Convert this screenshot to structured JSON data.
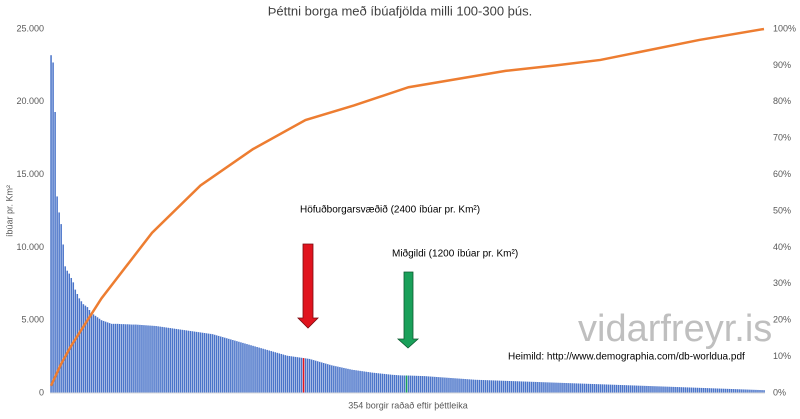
{
  "chart_data": {
    "type": "bar",
    "title": "Þéttni borga með íbúafjölda milli 100-300 þús.",
    "y_label": "íbúar pr. Km²",
    "x_label": "354 borgir raðað eftir þéttleika",
    "annotations": [
      "Höfuðborgarsvæðið (2400 íbúar pr. Km²)",
      "Miðgildi (1200 íbúar pr. Km²)"
    ],
    "watermark": "vidarfreyr.is",
    "source": "Heimild: http://www.demographia.com/db-worldua.pdf",
    "ylim": [
      0,
      25000
    ],
    "yticks": [
      0,
      {
        "value": 5000,
        "label": "5.000"
      },
      {
        "value": 10000,
        "label": "10.000"
      },
      {
        "value": 15000,
        "label": "15.000"
      },
      {
        "value": 20000,
        "label": "20.000"
      },
      {
        "value": 25000,
        "label": "25.000"
      }
    ],
    "y2lim": [
      0,
      100
    ],
    "y2ticks": [
      {
        "value": 0,
        "label": "0%"
      },
      {
        "value": 10,
        "label": "10%"
      },
      {
        "value": 20,
        "label": "20%"
      },
      {
        "value": 30,
        "label": "30%"
      },
      {
        "value": 40,
        "label": "40%"
      },
      {
        "value": 50,
        "label": "50%"
      },
      {
        "value": 60,
        "label": "60%"
      },
      {
        "value": 70,
        "label": "70%"
      },
      {
        "value": 80,
        "label": "80%"
      },
      {
        "value": 90,
        "label": "90%"
      },
      {
        "value": 100,
        "label": "100%"
      }
    ],
    "highlights": [
      {
        "index": 125,
        "color": "#e0141e"
      },
      {
        "index": 176,
        "color": "#1aa05a"
      }
    ],
    "series": [
      {
        "type": "bar",
        "color": "#4a74c9",
        "values": [
          23200,
          22700,
          19300,
          13500,
          12400,
          11600,
          10200,
          8700,
          8400,
          8200,
          7900,
          7600,
          7100,
          6800,
          6500,
          6300,
          6100,
          6000,
          5900,
          5700,
          5500,
          5400,
          5300,
          5200,
          5100,
          5000,
          4950,
          4900,
          4850,
          4800,
          4750,
          4750,
          4750,
          4750,
          4740,
          4730,
          4730,
          4720,
          4720,
          4710,
          4700,
          4700,
          4700,
          4690,
          4680,
          4670,
          4660,
          4650,
          4640,
          4630,
          4620,
          4610,
          4600,
          4580,
          4560,
          4540,
          4520,
          4500,
          4480,
          4460,
          4440,
          4420,
          4400,
          4380,
          4360,
          4340,
          4320,
          4300,
          4280,
          4260,
          4240,
          4220,
          4200,
          4180,
          4160,
          4140,
          4120,
          4100,
          4080,
          4060,
          4040,
          4000,
          3960,
          3920,
          3880,
          3840,
          3800,
          3760,
          3720,
          3680,
          3640,
          3600,
          3560,
          3520,
          3480,
          3440,
          3400,
          3360,
          3320,
          3280,
          3240,
          3200,
          3160,
          3120,
          3080,
          3040,
          3000,
          2960,
          2920,
          2880,
          2840,
          2800,
          2760,
          2720,
          2680,
          2640,
          2600,
          2560,
          2540,
          2520,
          2500,
          2480,
          2460,
          2440,
          2420,
          2400,
          2380,
          2360,
          2340,
          2300,
          2260,
          2220,
          2180,
          2140,
          2100,
          2060,
          2020,
          1980,
          1940,
          1900,
          1870,
          1840,
          1810,
          1780,
          1750,
          1720,
          1690,
          1660,
          1630,
          1600,
          1580,
          1560,
          1540,
          1520,
          1500,
          1480,
          1460,
          1440,
          1420,
          1400,
          1385,
          1370,
          1355,
          1340,
          1325,
          1310,
          1295,
          1280,
          1265,
          1250,
          1240,
          1230,
          1220,
          1210,
          1205,
          1200,
          1200,
          1200,
          1195,
          1190,
          1185,
          1180,
          1175,
          1170,
          1165,
          1160,
          1150,
          1140,
          1130,
          1120,
          1110,
          1100,
          1090,
          1080,
          1070,
          1060,
          1050,
          1040,
          1030,
          1020,
          1010,
          1000,
          990,
          980,
          970,
          960,
          950,
          940,
          930,
          920,
          910,
          905,
          900,
          895,
          890,
          885,
          880,
          875,
          870,
          865,
          860,
          855,
          850,
          845,
          840,
          835,
          830,
          825,
          820,
          815,
          810,
          805,
          800,
          795,
          790,
          785,
          780,
          775,
          770,
          765,
          760,
          755,
          750,
          745,
          740,
          735,
          730,
          725,
          720,
          715,
          710,
          705,
          700,
          695,
          690,
          685,
          680,
          675,
          670,
          665,
          660,
          655,
          650,
          645,
          640,
          635,
          630,
          625,
          620,
          615,
          610,
          605,
          600,
          595,
          590,
          585,
          580,
          575,
          570,
          565,
          560,
          555,
          550,
          545,
          540,
          535,
          530,
          525,
          520,
          515,
          510,
          505,
          500,
          495,
          490,
          485,
          480,
          475,
          470,
          465,
          460,
          455,
          450,
          445,
          440,
          435,
          430,
          425,
          420,
          415,
          410,
          405,
          400,
          395,
          390,
          385,
          380,
          375,
          370,
          365,
          360,
          355,
          350,
          345,
          340,
          335,
          330,
          325,
          320,
          315,
          310,
          305,
          300,
          295,
          290,
          285,
          280,
          275,
          270,
          265,
          260,
          255,
          250,
          245,
          240,
          235,
          230,
          225,
          220,
          215,
          210,
          205,
          200,
          195
        ]
      },
      {
        "type": "line",
        "axis": "y2",
        "color": "#ed7d31",
        "x": [
          0,
          5,
          10,
          25,
          50,
          74,
          100,
          126,
          150,
          177,
          225,
          250,
          272,
          321,
          353
        ],
        "values": [
          2,
          8,
          13,
          26,
          44,
          57,
          67,
          75,
          79,
          84,
          88.5,
          90,
          91.5,
          97,
          100
        ]
      }
    ]
  }
}
